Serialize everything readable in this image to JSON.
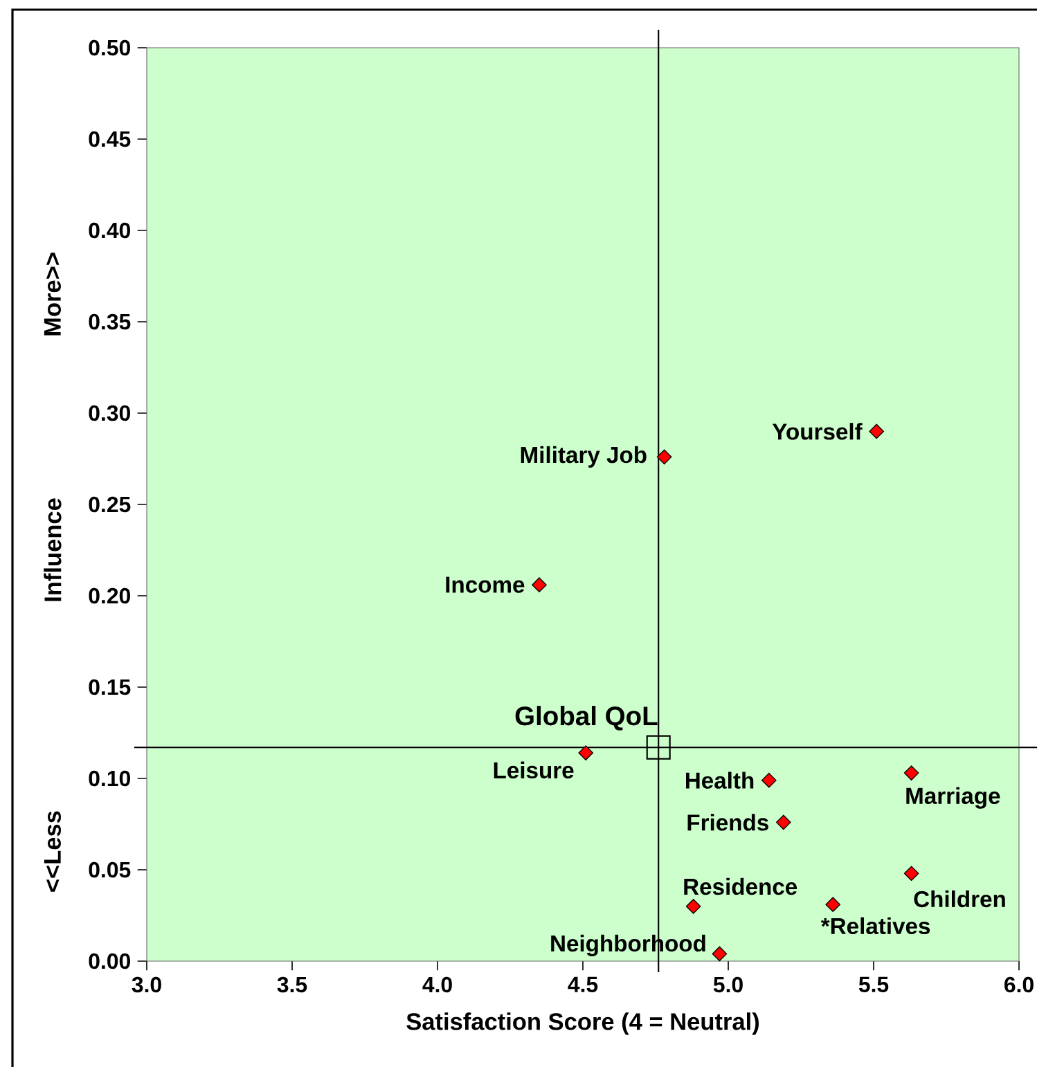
{
  "chart_data": {
    "type": "scatter",
    "xlabel": "Satisfaction Score (4 = Neutral)",
    "ylabel": "Influence",
    "xlim": [
      3.0,
      6.0
    ],
    "xticks": [
      {
        "value": 3.0,
        "label": "3.0"
      },
      3.5,
      {
        "value": 4.0,
        "label": "4.0"
      },
      4.5,
      {
        "value": 5.0,
        "label": "5.0"
      },
      5.5,
      {
        "value": 6.0,
        "label": "6.0"
      }
    ],
    "ylim": [
      0.0,
      0.5
    ],
    "yticks": [
      {
        "value": 0.0,
        "label": "0.00"
      },
      0.05,
      {
        "value": 0.1,
        "label": "0.10"
      },
      0.15,
      {
        "value": 0.2,
        "label": "0.20"
      },
      0.25,
      {
        "value": 0.3,
        "label": "0.30"
      },
      0.35,
      {
        "value": 0.4,
        "label": "0.40"
      },
      0.45,
      {
        "value": 0.5,
        "label": "0.50"
      }
    ],
    "series": [
      {
        "color": "#ff0000",
        "marker": "diamond",
        "x": [
          5.51,
          4.78,
          4.35,
          4.51,
          5.14,
          5.63,
          5.19,
          5.63,
          4.88,
          5.36,
          4.97
        ],
        "values": [
          0.29,
          0.276,
          0.206,
          0.114,
          0.099,
          0.103,
          0.076,
          0.048,
          0.03,
          0.031,
          0.004
        ]
      },
      {
        "name": "Global QoL",
        "color": "#000000",
        "marker": "square",
        "x": [
          4.76
        ],
        "values": [
          0.117
        ]
      }
    ],
    "ref_lines": [
      {
        "axis": "x",
        "value": 4.76,
        "color": "#000000"
      },
      {
        "axis": "y",
        "value": 0.117,
        "color": "#000000"
      }
    ],
    "annotations": [
      "More>>",
      "<<Less",
      {
        "text": "Yourself",
        "x": 5.51,
        "y": 0.29
      },
      {
        "text": "Military Job",
        "x": 4.78,
        "y": 0.276
      },
      {
        "text": "Income",
        "x": 4.35,
        "y": 0.206
      },
      {
        "text": "Leisure",
        "x": 4.51,
        "y": 0.114
      },
      {
        "text": "Health",
        "x": 5.14,
        "y": 0.099
      },
      {
        "text": "Marriage",
        "x": 5.63,
        "y": 0.103
      },
      {
        "text": "Friends",
        "x": 5.19,
        "y": 0.076
      },
      {
        "text": "Children",
        "x": 5.63,
        "y": 0.048
      },
      {
        "text": "Residence",
        "x": 4.88,
        "y": 0.03
      },
      {
        "text": "*Relatives",
        "x": 5.36,
        "y": 0.031
      },
      {
        "text": "Neighborhood",
        "x": 4.97,
        "y": 0.004
      }
    ]
  }
}
